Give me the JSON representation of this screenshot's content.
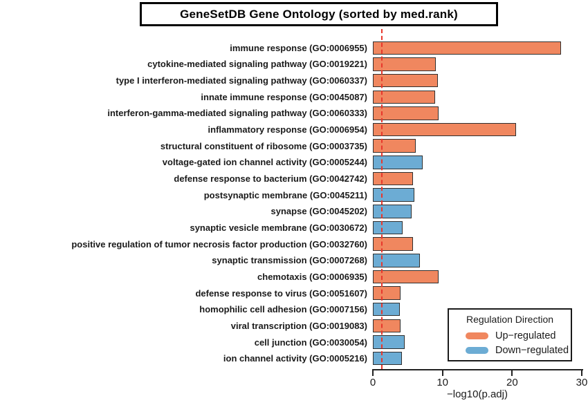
{
  "chart_data": {
    "type": "bar",
    "orientation": "horizontal",
    "title": "GeneSetDB Gene Ontology (sorted by med.rank)",
    "xlabel": "−log10(p.adj)",
    "xlim": [
      0,
      30
    ],
    "xticks": [
      0,
      10,
      20,
      30
    ],
    "grid": false,
    "legend_position": "bottom-right",
    "threshold_line": {
      "x": 1.3,
      "style": "dashed",
      "color": "#e8372c"
    },
    "colors": {
      "up": "#F0875F",
      "down": "#6CACD4",
      "bar_border": "#2f2f2f"
    },
    "legend": {
      "title": "Regulation Direction",
      "entries": [
        {
          "label": "Up−regulated",
          "direction": "up",
          "color": "#F0875F"
        },
        {
          "label": "Down−regulated",
          "direction": "down",
          "color": "#6CACD4"
        }
      ]
    },
    "bars": [
      {
        "label": "immune response (GO:0006955)",
        "value": 27.0,
        "direction": "up"
      },
      {
        "label": "cytokine-mediated signaling pathway (GO:0019221)",
        "value": 9.0,
        "direction": "up"
      },
      {
        "label": "type I interferon-mediated signaling pathway (GO:0060337)",
        "value": 9.3,
        "direction": "up"
      },
      {
        "label": "innate immune response (GO:0045087)",
        "value": 8.9,
        "direction": "up"
      },
      {
        "label": "interferon-gamma-mediated signaling pathway (GO:0060333)",
        "value": 9.4,
        "direction": "up"
      },
      {
        "label": "inflammatory response (GO:0006954)",
        "value": 20.6,
        "direction": "up"
      },
      {
        "label": "structural constituent of ribosome (GO:0003735)",
        "value": 6.2,
        "direction": "up"
      },
      {
        "label": "voltage-gated ion channel activity (GO:0005244)",
        "value": 7.2,
        "direction": "down"
      },
      {
        "label": "defense response to bacterium (GO:0042742)",
        "value": 5.8,
        "direction": "up"
      },
      {
        "label": "postsynaptic membrane (GO:0045211)",
        "value": 6.0,
        "direction": "down"
      },
      {
        "label": "synapse (GO:0045202)",
        "value": 5.6,
        "direction": "down"
      },
      {
        "label": "synaptic vesicle membrane (GO:0030672)",
        "value": 4.3,
        "direction": "down"
      },
      {
        "label": "positive regulation of tumor necrosis factor production (GO:0032760)",
        "value": 5.8,
        "direction": "up"
      },
      {
        "label": "synaptic transmission (GO:0007268)",
        "value": 6.8,
        "direction": "down"
      },
      {
        "label": "chemotaxis (GO:0006935)",
        "value": 9.4,
        "direction": "up"
      },
      {
        "label": "defense response to virus (GO:0051607)",
        "value": 4.0,
        "direction": "up"
      },
      {
        "label": "homophilic cell adhesion (GO:0007156)",
        "value": 3.9,
        "direction": "down"
      },
      {
        "label": "viral transcription (GO:0019083)",
        "value": 4.0,
        "direction": "up"
      },
      {
        "label": "cell junction (GO:0030054)",
        "value": 4.6,
        "direction": "down"
      },
      {
        "label": "ion channel activity (GO:0005216)",
        "value": 4.2,
        "direction": "down"
      }
    ]
  }
}
